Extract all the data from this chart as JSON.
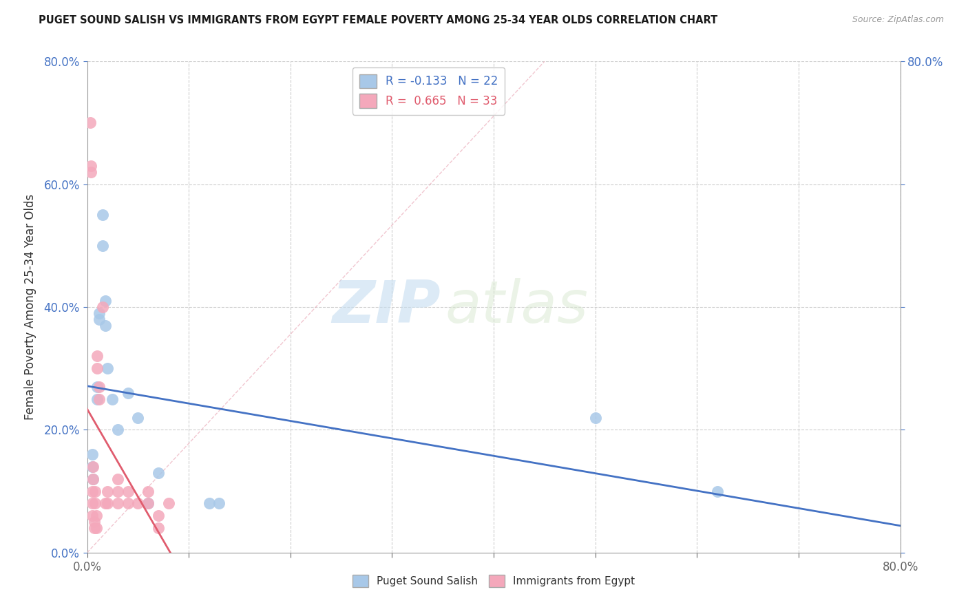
{
  "title": "PUGET SOUND SALISH VS IMMIGRANTS FROM EGYPT FEMALE POVERTY AMONG 25-34 YEAR OLDS CORRELATION CHART",
  "source": "Source: ZipAtlas.com",
  "ylabel": "Female Poverty Among 25-34 Year Olds",
  "legend1_label": "Puget Sound Salish",
  "legend2_label": "Immigrants from Egypt",
  "r1": -0.133,
  "n1": 22,
  "r2": 0.665,
  "n2": 33,
  "color1": "#a8c8e8",
  "color2": "#f4a8bb",
  "trendline1_color": "#4472c4",
  "trendline2_color": "#e05c6e",
  "watermark_zip": "ZIP",
  "watermark_atlas": "atlas",
  "xlim": [
    0.0,
    0.8
  ],
  "ylim": [
    0.0,
    0.8
  ],
  "y_ticks": [
    0.0,
    0.2,
    0.4,
    0.6,
    0.8
  ],
  "x_tick_positions": [
    0.0,
    0.1,
    0.2,
    0.3,
    0.4,
    0.5,
    0.6,
    0.7,
    0.8
  ],
  "blue_points": [
    [
      0.005,
      0.14
    ],
    [
      0.005,
      0.16
    ],
    [
      0.006,
      0.12
    ],
    [
      0.01,
      0.25
    ],
    [
      0.01,
      0.27
    ],
    [
      0.012,
      0.38
    ],
    [
      0.012,
      0.39
    ],
    [
      0.015,
      0.55
    ],
    [
      0.015,
      0.5
    ],
    [
      0.018,
      0.41
    ],
    [
      0.018,
      0.37
    ],
    [
      0.02,
      0.3
    ],
    [
      0.025,
      0.25
    ],
    [
      0.03,
      0.2
    ],
    [
      0.04,
      0.26
    ],
    [
      0.05,
      0.22
    ],
    [
      0.06,
      0.08
    ],
    [
      0.07,
      0.13
    ],
    [
      0.12,
      0.08
    ],
    [
      0.13,
      0.08
    ],
    [
      0.5,
      0.22
    ],
    [
      0.62,
      0.1
    ]
  ],
  "pink_points": [
    [
      0.003,
      0.7
    ],
    [
      0.004,
      0.62
    ],
    [
      0.004,
      0.63
    ],
    [
      0.005,
      0.08
    ],
    [
      0.005,
      0.06
    ],
    [
      0.005,
      0.1
    ],
    [
      0.006,
      0.12
    ],
    [
      0.006,
      0.14
    ],
    [
      0.007,
      0.04
    ],
    [
      0.007,
      0.05
    ],
    [
      0.008,
      0.08
    ],
    [
      0.008,
      0.1
    ],
    [
      0.009,
      0.04
    ],
    [
      0.009,
      0.06
    ],
    [
      0.01,
      0.3
    ],
    [
      0.01,
      0.32
    ],
    [
      0.012,
      0.25
    ],
    [
      0.012,
      0.27
    ],
    [
      0.015,
      0.4
    ],
    [
      0.018,
      0.08
    ],
    [
      0.02,
      0.08
    ],
    [
      0.02,
      0.1
    ],
    [
      0.03,
      0.08
    ],
    [
      0.03,
      0.1
    ],
    [
      0.03,
      0.12
    ],
    [
      0.04,
      0.08
    ],
    [
      0.04,
      0.1
    ],
    [
      0.05,
      0.08
    ],
    [
      0.06,
      0.08
    ],
    [
      0.06,
      0.1
    ],
    [
      0.07,
      0.06
    ],
    [
      0.07,
      0.04
    ],
    [
      0.08,
      0.08
    ]
  ],
  "background_color": "#ffffff",
  "grid_color": "#cccccc",
  "tick_color": "#4472c4",
  "font_color": "#333333",
  "title_color": "#1a1a1a"
}
